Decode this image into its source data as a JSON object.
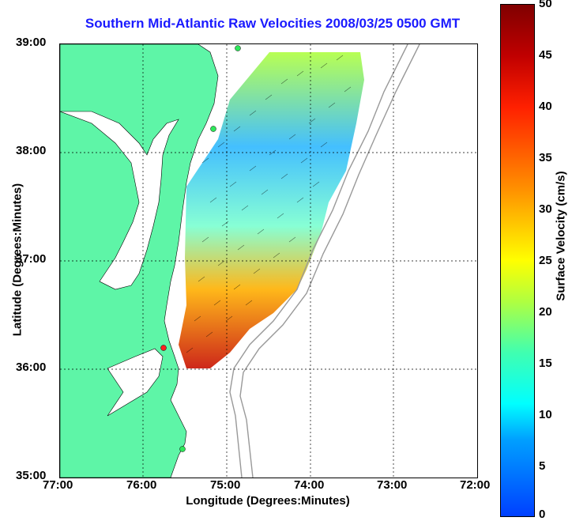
{
  "title": "Southern Mid-Atlantic Raw Velocities 2008/03/25 0500 GMT",
  "xlabel": "Longitude (Degrees:Minutes)",
  "ylabel": "Latitude (Degrees:Minutes)",
  "x_ticks": [
    "77:00",
    "76:00",
    "75:00",
    "74:00",
    "73:00",
    "72:00"
  ],
  "y_ticks": [
    "39:00",
    "38:00",
    "37:00",
    "36:00",
    "35:00"
  ],
  "colorbar": {
    "label": "Surface Velocity (cm/s)",
    "ticks": [
      "50",
      "45",
      "40",
      "35",
      "30",
      "25",
      "20",
      "15",
      "10",
      "5",
      "0"
    ]
  },
  "colors": {
    "land": "#5ef5a7",
    "title": "#1a1aff"
  }
}
